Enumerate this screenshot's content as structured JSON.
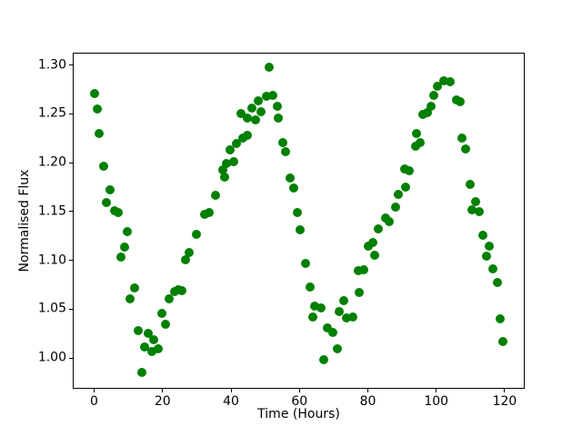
{
  "figure": {
    "background": "#ffffff",
    "text_color": "#000000"
  },
  "chart_data": {
    "type": "scatter",
    "title": "",
    "xlabel": "Time (Hours)",
    "ylabel": "Normalised Flux",
    "marker_color": "#008000",
    "marker_diameter_px": 10,
    "grid": false,
    "legend": "none",
    "xlim": [
      -6.25,
      125.85
    ],
    "ylim": [
      0.969,
      1.3131
    ],
    "xticks": [
      {
        "value": 0,
        "label": "0"
      },
      {
        "value": 20,
        "label": "20"
      },
      {
        "value": 40,
        "label": "40"
      },
      {
        "value": 60,
        "label": "60"
      },
      {
        "value": 80,
        "label": "80"
      },
      {
        "value": 100,
        "label": "100"
      },
      {
        "value": 120,
        "label": "120"
      }
    ],
    "yticks": [
      {
        "value": 1.0,
        "label": "1.00"
      },
      {
        "value": 1.05,
        "label": "1.05"
      },
      {
        "value": 1.1,
        "label": "1.10"
      },
      {
        "value": 1.15,
        "label": "1.15"
      },
      {
        "value": 1.2,
        "label": "1.20"
      },
      {
        "value": 1.25,
        "label": "1.25"
      },
      {
        "value": 1.3,
        "label": "1.30"
      }
    ],
    "x": [
      0.0,
      0.9,
      1.5,
      2.9,
      3.7,
      4.7,
      6.0,
      7.1,
      7.9,
      8.8,
      9.7,
      10.6,
      11.7,
      12.8,
      14.0,
      14.8,
      15.7,
      17.0,
      17.5,
      18.8,
      19.7,
      20.8,
      21.9,
      23.5,
      24.5,
      25.7,
      26.8,
      27.9,
      29.9,
      32.2,
      33.7,
      35.4,
      37.6,
      38.1,
      38.8,
      39.7,
      40.7,
      41.6,
      43.0,
      43.5,
      44.8,
      44.9,
      46.0,
      47.1,
      48.1,
      48.8,
      50.3,
      51.2,
      52.3,
      53.5,
      53.9,
      55.2,
      56.0,
      57.4,
      58.3,
      59.4,
      60.1,
      61.7,
      63.0,
      64.0,
      64.5,
      66.2,
      67.2,
      68.2,
      69.7,
      71.2,
      71.5,
      73.0,
      73.8,
      75.5,
      77.1,
      77.4,
      78.7,
      80.1,
      81.4,
      82.1,
      83.0,
      85.1,
      86.3,
      88.2,
      89.0,
      90.8,
      91.0,
      92.2,
      93.9,
      94.3,
      95.3,
      96.0,
      97.3,
      98.4,
      99.3,
      100.3,
      102.1,
      104.0,
      105.9,
      107.1,
      107.4,
      108.7,
      109.8,
      110.5,
      111.4,
      112.6,
      113.7,
      114.8,
      115.5,
      116.5,
      117.9,
      118.6,
      119.5
    ],
    "y": [
      1.271,
      1.255,
      1.23,
      1.196,
      1.159,
      1.172,
      1.151,
      1.149,
      1.103,
      1.114,
      1.129,
      1.061,
      1.072,
      1.028,
      0.985,
      1.011,
      1.025,
      1.007,
      1.019,
      1.009,
      1.046,
      1.035,
      1.061,
      1.068,
      1.07,
      1.069,
      1.101,
      1.108,
      1.127,
      1.147,
      1.149,
      1.167,
      1.193,
      1.185,
      1.199,
      1.213,
      1.201,
      1.22,
      1.25,
      1.225,
      1.228,
      1.246,
      1.256,
      1.244,
      1.263,
      1.252,
      1.268,
      1.298,
      1.269,
      1.258,
      1.246,
      1.221,
      1.211,
      1.184,
      1.174,
      1.149,
      1.131,
      1.097,
      1.073,
      1.042,
      1.053,
      1.051,
      0.998,
      1.031,
      1.026,
      1.009,
      1.048,
      1.059,
      1.041,
      1.042,
      1.089,
      1.067,
      1.09,
      1.115,
      1.118,
      1.105,
      1.132,
      1.143,
      1.14,
      1.155,
      1.168,
      1.194,
      1.175,
      1.192,
      1.217,
      1.23,
      1.221,
      1.249,
      1.251,
      1.258,
      1.269,
      1.278,
      1.284,
      1.283,
      1.264,
      1.262,
      1.225,
      1.214,
      1.178,
      1.152,
      1.16,
      1.15,
      1.126,
      1.104,
      1.115,
      1.091,
      1.077,
      1.04,
      1.017
    ]
  }
}
